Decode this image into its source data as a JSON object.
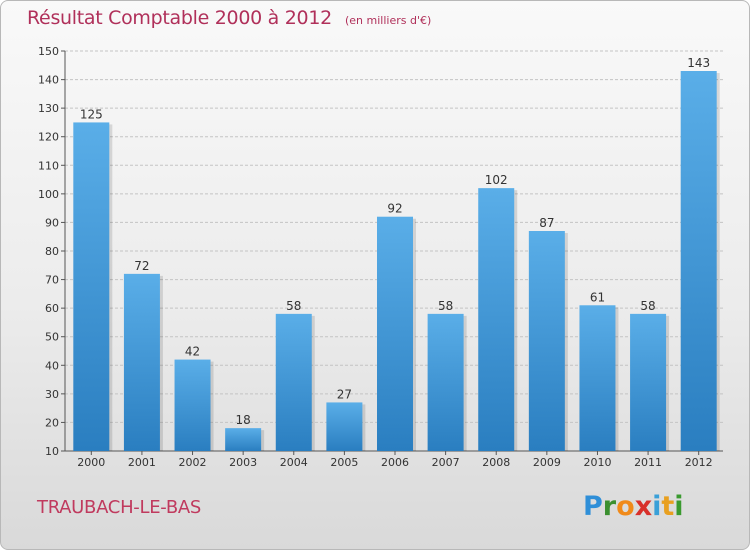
{
  "title": "Résultat Comptable 2000 à 2012",
  "subtitle": "(en milliers d'€)",
  "commune": "TRAUBACH-LE-BAS",
  "logo": {
    "letters": [
      "P",
      "r",
      "o",
      "x",
      "i",
      "t",
      "i"
    ],
    "colors": [
      "#2f8fd8",
      "#3a8f2f",
      "#f08a1a",
      "#d8302a",
      "#3aa0d8",
      "#e8a020",
      "#3a9a2f"
    ]
  },
  "colors": {
    "bar_light": "#5aaee8",
    "bar_dark": "#2a7ec0",
    "title": "#b0305a"
  },
  "chart_data": {
    "type": "bar",
    "title": "Résultat Comptable 2000 à 2012",
    "xlabel": "",
    "ylabel": "",
    "categories": [
      "2000",
      "2001",
      "2002",
      "2003",
      "2004",
      "2005",
      "2006",
      "2007",
      "2008",
      "2009",
      "2010",
      "2011",
      "2012"
    ],
    "values": [
      125,
      72,
      42,
      18,
      58,
      27,
      92,
      58,
      102,
      87,
      61,
      58,
      143
    ],
    "ylim": [
      10,
      150
    ],
    "yticks": [
      10,
      20,
      30,
      40,
      50,
      60,
      70,
      80,
      90,
      100,
      110,
      120,
      130,
      140,
      150
    ],
    "grid": true
  }
}
